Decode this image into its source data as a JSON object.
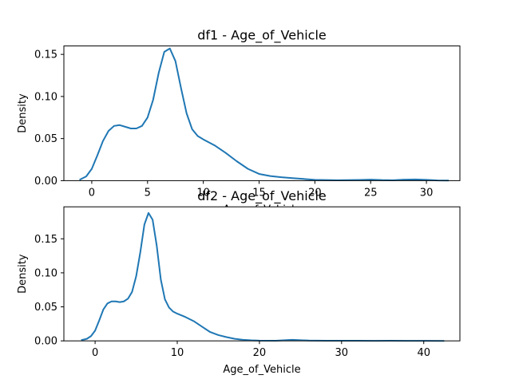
{
  "chart_data": [
    {
      "type": "line",
      "title": "df1 - Age_of_Vehicle",
      "xlabel": "Age_of_Vehicle",
      "ylabel": "Density",
      "xlim": [
        -2.5,
        33
      ],
      "ylim": [
        0,
        0.16
      ],
      "xticks": [
        0,
        5,
        10,
        15,
        20,
        25,
        30
      ],
      "xtick_labels": [
        "0",
        "5",
        "10",
        "15",
        "20",
        "25",
        "30"
      ],
      "yticks": [
        0.0,
        0.05,
        0.1,
        0.15
      ],
      "ytick_labels": [
        "0.00",
        "0.05",
        "0.10",
        "0.15"
      ],
      "series": [
        {
          "color": "#1f77b4",
          "x": [
            -1.1,
            -0.5,
            0,
            0.5,
            1,
            1.5,
            2,
            2.5,
            3,
            3.5,
            4,
            4.5,
            5,
            5.5,
            6,
            6.5,
            7,
            7.5,
            8,
            8.5,
            9,
            9.5,
            10,
            11,
            12,
            13,
            14,
            15,
            16,
            17,
            18,
            19,
            20,
            22,
            24,
            25,
            26,
            27,
            28,
            29,
            30,
            31,
            32
          ],
          "y": [
            0.001,
            0.005,
            0.014,
            0.03,
            0.047,
            0.059,
            0.065,
            0.066,
            0.064,
            0.062,
            0.062,
            0.065,
            0.075,
            0.096,
            0.128,
            0.153,
            0.157,
            0.142,
            0.11,
            0.08,
            0.061,
            0.053,
            0.049,
            0.042,
            0.033,
            0.023,
            0.014,
            0.008,
            0.0055,
            0.004,
            0.003,
            0.002,
            0.001,
            0.0005,
            0.0008,
            0.0012,
            0.0007,
            0.0005,
            0.0012,
            0.0015,
            0.001,
            0.0003,
            0.0001
          ]
        }
      ]
    },
    {
      "type": "line",
      "title": "df2 - Age_of_Vehicle",
      "xlabel": "Age_of_Vehicle",
      "ylabel": "Density",
      "xlim": [
        -3.8,
        44.4
      ],
      "ylim": [
        0,
        0.197
      ],
      "xticks": [
        0,
        10,
        20,
        30,
        40
      ],
      "xtick_labels": [
        "0",
        "10",
        "20",
        "30",
        "40"
      ],
      "yticks": [
        0.0,
        0.05,
        0.1,
        0.15
      ],
      "ytick_labels": [
        "0.00",
        "0.05",
        "0.10",
        "0.15"
      ],
      "series": [
        {
          "color": "#1f77b4",
          "x": [
            -1.7,
            -1,
            -0.5,
            0,
            0.5,
            1,
            1.5,
            2,
            2.5,
            3,
            3.5,
            4,
            4.5,
            5,
            5.5,
            6,
            6.5,
            7,
            7.5,
            8,
            8.5,
            9,
            9.5,
            10,
            11,
            12,
            13,
            14,
            15,
            16,
            17,
            18,
            19,
            20,
            22,
            24,
            26,
            28,
            30,
            32,
            34,
            36,
            38,
            40,
            42.5
          ],
          "y": [
            0.001,
            0.003,
            0.007,
            0.015,
            0.03,
            0.046,
            0.055,
            0.058,
            0.058,
            0.057,
            0.058,
            0.062,
            0.072,
            0.095,
            0.13,
            0.171,
            0.188,
            0.178,
            0.14,
            0.09,
            0.061,
            0.049,
            0.043,
            0.04,
            0.035,
            0.029,
            0.021,
            0.013,
            0.0085,
            0.0055,
            0.003,
            0.0015,
            0.0008,
            0.0004,
            0.0003,
            0.0015,
            0.0005,
            0.0002,
            0.0002,
            0.0003,
            0.0001,
            0.0002,
            0.0001,
            0.0001,
            0.0
          ]
        }
      ]
    }
  ]
}
